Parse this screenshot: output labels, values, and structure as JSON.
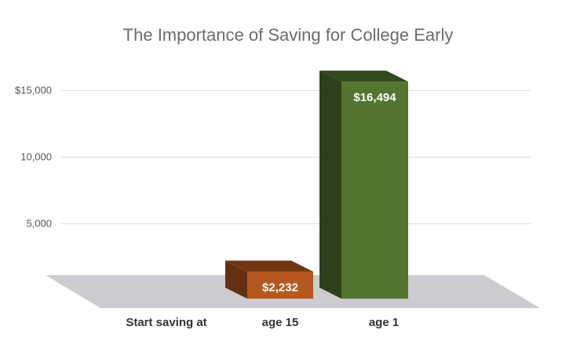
{
  "chart_data": {
    "type": "bar",
    "title": "The Importance of Saving for College Early",
    "axis_prefix_label": "Start saving at",
    "categories": [
      "age 15",
      "age 1"
    ],
    "values": [
      2232,
      16494
    ],
    "data_labels": [
      "$2,232",
      "$16,494"
    ],
    "colors": [
      "#b4581f",
      "#527530"
    ],
    "yticks": [
      {
        "value": 5000,
        "label": "5,000"
      },
      {
        "value": 10000,
        "label": "10,000"
      },
      {
        "value": 15000,
        "label": "$15,000"
      }
    ],
    "ylim": [
      0,
      16000
    ],
    "grid": true,
    "style": "3d"
  }
}
